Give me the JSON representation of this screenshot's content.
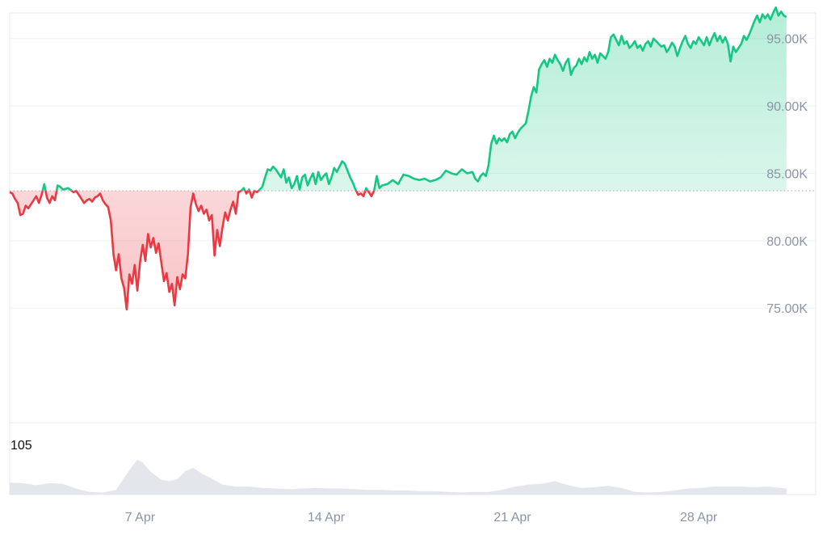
{
  "chart_data": {
    "type": "area",
    "baseline": 83700,
    "colors": {
      "up_line": "#16c784",
      "up_fill": "#16c784",
      "down_line": "#ea3943",
      "down_fill": "#ea3943",
      "volume_fill": "#e3e7ec",
      "grid": "#eef0f3",
      "axis_text": "#8a94a6",
      "baseline_dots": "#9aa3b0"
    },
    "y_axis": {
      "ylim": [
        66500,
        96900
      ],
      "ticks": [
        75000,
        80000,
        85000,
        90000,
        95000
      ],
      "tick_labels": [
        "75.00K",
        "80.00K",
        "85.00K",
        "90.00K",
        "95.00K"
      ]
    },
    "x_axis": {
      "xlim": [
        0,
        30.3
      ],
      "ticks": [
        4.9,
        11.9,
        18.9,
        25.9
      ],
      "tick_labels": [
        "7 Apr",
        "14 Apr",
        "21 Apr",
        "28 Apr"
      ]
    },
    "price_series": [
      [
        0.0,
        83600
      ],
      [
        0.1,
        83500
      ],
      [
        0.2,
        83100
      ],
      [
        0.3,
        82800
      ],
      [
        0.4,
        81900
      ],
      [
        0.5,
        82000
      ],
      [
        0.6,
        82600
      ],
      [
        0.7,
        82400
      ],
      [
        0.8,
        82700
      ],
      [
        0.9,
        83000
      ],
      [
        1.0,
        83300
      ],
      [
        1.1,
        82800
      ],
      [
        1.2,
        83400
      ],
      [
        1.3,
        84200
      ],
      [
        1.4,
        83200
      ],
      [
        1.5,
        82800
      ],
      [
        1.6,
        83300
      ],
      [
        1.7,
        83000
      ],
      [
        1.8,
        84100
      ],
      [
        1.9,
        84000
      ],
      [
        2.0,
        83800
      ],
      [
        2.2,
        83900
      ],
      [
        2.4,
        83600
      ],
      [
        2.5,
        83700
      ],
      [
        2.6,
        83400
      ],
      [
        2.7,
        83100
      ],
      [
        2.8,
        82800
      ],
      [
        2.9,
        83000
      ],
      [
        3.0,
        83100
      ],
      [
        3.1,
        82900
      ],
      [
        3.2,
        83200
      ],
      [
        3.3,
        83300
      ],
      [
        3.4,
        83500
      ],
      [
        3.5,
        83000
      ],
      [
        3.6,
        82700
      ],
      [
        3.7,
        82500
      ],
      [
        3.8,
        81500
      ],
      [
        3.9,
        79000
      ],
      [
        4.0,
        77800
      ],
      [
        4.1,
        79000
      ],
      [
        4.2,
        77200
      ],
      [
        4.3,
        76500
      ],
      [
        4.4,
        74900
      ],
      [
        4.5,
        77500
      ],
      [
        4.6,
        76800
      ],
      [
        4.7,
        78200
      ],
      [
        4.8,
        76300
      ],
      [
        4.9,
        78400
      ],
      [
        5.0,
        79700
      ],
      [
        5.1,
        78500
      ],
      [
        5.2,
        80500
      ],
      [
        5.3,
        79500
      ],
      [
        5.4,
        80200
      ],
      [
        5.5,
        79100
      ],
      [
        5.6,
        79800
      ],
      [
        5.7,
        78400
      ],
      [
        5.8,
        77000
      ],
      [
        5.9,
        77600
      ],
      [
        6.0,
        76200
      ],
      [
        6.1,
        76800
      ],
      [
        6.2,
        75200
      ],
      [
        6.3,
        77300
      ],
      [
        6.4,
        76400
      ],
      [
        6.5,
        77500
      ],
      [
        6.6,
        77200
      ],
      [
        6.7,
        79000
      ],
      [
        6.8,
        82500
      ],
      [
        6.9,
        83500
      ],
      [
        7.0,
        82700
      ],
      [
        7.1,
        82200
      ],
      [
        7.2,
        82600
      ],
      [
        7.3,
        82000
      ],
      [
        7.4,
        82300
      ],
      [
        7.5,
        81500
      ],
      [
        7.6,
        81900
      ],
      [
        7.7,
        78900
      ],
      [
        7.8,
        80800
      ],
      [
        7.9,
        79600
      ],
      [
        8.0,
        81000
      ],
      [
        8.1,
        82100
      ],
      [
        8.2,
        81500
      ],
      [
        8.3,
        82300
      ],
      [
        8.4,
        82900
      ],
      [
        8.5,
        82000
      ],
      [
        8.6,
        83600
      ],
      [
        8.7,
        83700
      ],
      [
        8.8,
        83900
      ],
      [
        8.9,
        83500
      ],
      [
        9.0,
        83800
      ],
      [
        9.1,
        83200
      ],
      [
        9.2,
        83700
      ],
      [
        9.3,
        83600
      ],
      [
        9.4,
        83800
      ],
      [
        9.5,
        84000
      ],
      [
        9.6,
        84700
      ],
      [
        9.7,
        85300
      ],
      [
        9.8,
        85200
      ],
      [
        9.9,
        85500
      ],
      [
        10.0,
        85300
      ],
      [
        10.1,
        85000
      ],
      [
        10.2,
        84700
      ],
      [
        10.3,
        85300
      ],
      [
        10.4,
        84300
      ],
      [
        10.5,
        84700
      ],
      [
        10.6,
        83900
      ],
      [
        10.7,
        84200
      ],
      [
        10.8,
        84800
      ],
      [
        10.9,
        83800
      ],
      [
        11.0,
        84700
      ],
      [
        11.1,
        84900
      ],
      [
        11.2,
        84100
      ],
      [
        11.3,
        84600
      ],
      [
        11.4,
        85000
      ],
      [
        11.5,
        84200
      ],
      [
        11.6,
        85100
      ],
      [
        11.7,
        84500
      ],
      [
        11.8,
        84800
      ],
      [
        11.9,
        85000
      ],
      [
        12.0,
        84200
      ],
      [
        12.1,
        84700
      ],
      [
        12.2,
        85400
      ],
      [
        12.3,
        85100
      ],
      [
        12.4,
        85500
      ],
      [
        12.5,
        85900
      ],
      [
        12.6,
        85700
      ],
      [
        12.7,
        85200
      ],
      [
        12.8,
        84700
      ],
      [
        12.9,
        84300
      ],
      [
        13.0,
        83800
      ],
      [
        13.1,
        83400
      ],
      [
        13.2,
        83500
      ],
      [
        13.3,
        83300
      ],
      [
        13.4,
        83900
      ],
      [
        13.5,
        83600
      ],
      [
        13.6,
        83300
      ],
      [
        13.7,
        83700
      ],
      [
        13.8,
        84800
      ],
      [
        13.9,
        83900
      ],
      [
        14.0,
        84100
      ],
      [
        14.2,
        84200
      ],
      [
        14.4,
        84500
      ],
      [
        14.6,
        84200
      ],
      [
        14.8,
        84900
      ],
      [
        15.0,
        84800
      ],
      [
        15.2,
        84600
      ],
      [
        15.4,
        84500
      ],
      [
        15.6,
        84600
      ],
      [
        15.8,
        84400
      ],
      [
        16.0,
        84500
      ],
      [
        16.2,
        84700
      ],
      [
        16.4,
        85200
      ],
      [
        16.6,
        85000
      ],
      [
        16.8,
        84900
      ],
      [
        17.0,
        85300
      ],
      [
        17.2,
        85000
      ],
      [
        17.4,
        85100
      ],
      [
        17.5,
        84600
      ],
      [
        17.6,
        84400
      ],
      [
        17.7,
        84800
      ],
      [
        17.8,
        85000
      ],
      [
        17.9,
        84800
      ],
      [
        18.0,
        85600
      ],
      [
        18.1,
        87200
      ],
      [
        18.2,
        87800
      ],
      [
        18.3,
        87200
      ],
      [
        18.4,
        87600
      ],
      [
        18.5,
        87400
      ],
      [
        18.6,
        87600
      ],
      [
        18.7,
        87300
      ],
      [
        18.8,
        87900
      ],
      [
        18.9,
        88100
      ],
      [
        19.0,
        87600
      ],
      [
        19.1,
        88000
      ],
      [
        19.2,
        88300
      ],
      [
        19.3,
        88500
      ],
      [
        19.4,
        88700
      ],
      [
        19.5,
        89600
      ],
      [
        19.6,
        90700
      ],
      [
        19.7,
        91400
      ],
      [
        19.8,
        91000
      ],
      [
        19.9,
        92700
      ],
      [
        20.0,
        93100
      ],
      [
        20.1,
        93400
      ],
      [
        20.2,
        92900
      ],
      [
        20.3,
        93500
      ],
      [
        20.4,
        93200
      ],
      [
        20.5,
        93800
      ],
      [
        20.6,
        93400
      ],
      [
        20.7,
        93100
      ],
      [
        20.8,
        92600
      ],
      [
        20.9,
        93200
      ],
      [
        21.0,
        93500
      ],
      [
        21.1,
        92300
      ],
      [
        21.2,
        92800
      ],
      [
        21.3,
        93000
      ],
      [
        21.4,
        93500
      ],
      [
        21.5,
        93100
      ],
      [
        21.6,
        93600
      ],
      [
        21.7,
        93300
      ],
      [
        21.8,
        94000
      ],
      [
        21.9,
        93500
      ],
      [
        22.0,
        93800
      ],
      [
        22.1,
        93200
      ],
      [
        22.2,
        93900
      ],
      [
        22.3,
        93700
      ],
      [
        22.4,
        93500
      ],
      [
        22.5,
        94000
      ],
      [
        22.6,
        95100
      ],
      [
        22.7,
        95300
      ],
      [
        22.8,
        94900
      ],
      [
        22.9,
        94500
      ],
      [
        23.0,
        95200
      ],
      [
        23.1,
        94600
      ],
      [
        23.2,
        94800
      ],
      [
        23.3,
        94300
      ],
      [
        23.4,
        94500
      ],
      [
        23.5,
        94800
      ],
      [
        23.6,
        94300
      ],
      [
        23.7,
        94500
      ],
      [
        23.8,
        94100
      ],
      [
        23.9,
        94600
      ],
      [
        24.0,
        94800
      ],
      [
        24.1,
        94400
      ],
      [
        24.2,
        95000
      ],
      [
        24.3,
        94800
      ],
      [
        24.4,
        94600
      ],
      [
        24.5,
        94400
      ],
      [
        24.6,
        94500
      ],
      [
        24.7,
        94000
      ],
      [
        24.8,
        94300
      ],
      [
        24.9,
        94700
      ],
      [
        25.0,
        94400
      ],
      [
        25.1,
        93700
      ],
      [
        25.2,
        94300
      ],
      [
        25.3,
        94800
      ],
      [
        25.4,
        95200
      ],
      [
        25.5,
        94600
      ],
      [
        25.6,
        94300
      ],
      [
        25.7,
        94800
      ],
      [
        25.8,
        94600
      ],
      [
        25.9,
        95100
      ],
      [
        26.0,
        94800
      ],
      [
        26.1,
        94500
      ],
      [
        26.2,
        95100
      ],
      [
        26.3,
        94500
      ],
      [
        26.4,
        95000
      ],
      [
        26.5,
        95400
      ],
      [
        26.6,
        94800
      ],
      [
        26.7,
        95200
      ],
      [
        26.8,
        94700
      ],
      [
        26.9,
        95100
      ],
      [
        27.0,
        94600
      ],
      [
        27.1,
        93300
      ],
      [
        27.2,
        94400
      ],
      [
        27.3,
        94000
      ],
      [
        27.4,
        94300
      ],
      [
        27.5,
        94600
      ],
      [
        27.6,
        95200
      ],
      [
        27.7,
        94900
      ],
      [
        27.8,
        95300
      ],
      [
        27.9,
        95800
      ],
      [
        28.0,
        96300
      ],
      [
        28.1,
        96700
      ],
      [
        28.2,
        96200
      ],
      [
        28.3,
        96800
      ],
      [
        28.4,
        96500
      ],
      [
        28.5,
        96800
      ],
      [
        28.6,
        96400
      ],
      [
        28.7,
        96900
      ],
      [
        28.8,
        97300
      ],
      [
        28.9,
        96700
      ],
      [
        29.0,
        97000
      ],
      [
        29.1,
        96700
      ],
      [
        29.2,
        96600
      ]
    ],
    "volume_series": [
      [
        0.0,
        18
      ],
      [
        0.5,
        17
      ],
      [
        1.0,
        14
      ],
      [
        1.5,
        17
      ],
      [
        2.0,
        16
      ],
      [
        2.5,
        9
      ],
      [
        3.0,
        4
      ],
      [
        3.5,
        3
      ],
      [
        4.0,
        7
      ],
      [
        4.3,
        25
      ],
      [
        4.6,
        42
      ],
      [
        4.8,
        52
      ],
      [
        5.0,
        48
      ],
      [
        5.3,
        34
      ],
      [
        5.7,
        22
      ],
      [
        6.0,
        20
      ],
      [
        6.3,
        23
      ],
      [
        6.6,
        35
      ],
      [
        6.9,
        40
      ],
      [
        7.2,
        32
      ],
      [
        7.6,
        24
      ],
      [
        8.0,
        15
      ],
      [
        8.5,
        12
      ],
      [
        9.0,
        12
      ],
      [
        9.5,
        10
      ],
      [
        10.0,
        9
      ],
      [
        10.5,
        8
      ],
      [
        11.0,
        9
      ],
      [
        11.5,
        10
      ],
      [
        12.0,
        9
      ],
      [
        12.5,
        9
      ],
      [
        13.0,
        8
      ],
      [
        13.5,
        7
      ],
      [
        14.0,
        7
      ],
      [
        14.5,
        6
      ],
      [
        15.0,
        6
      ],
      [
        15.5,
        5
      ],
      [
        16.0,
        5
      ],
      [
        16.5,
        4
      ],
      [
        17.0,
        3
      ],
      [
        17.5,
        4
      ],
      [
        18.0,
        4
      ],
      [
        18.5,
        7
      ],
      [
        19.0,
        12
      ],
      [
        19.5,
        15
      ],
      [
        20.0,
        16
      ],
      [
        20.5,
        20
      ],
      [
        21.0,
        14
      ],
      [
        21.5,
        10
      ],
      [
        22.0,
        11
      ],
      [
        22.5,
        13
      ],
      [
        23.0,
        10
      ],
      [
        23.5,
        4
      ],
      [
        24.0,
        3
      ],
      [
        24.5,
        4
      ],
      [
        25.0,
        6
      ],
      [
        25.5,
        9
      ],
      [
        26.0,
        10
      ],
      [
        26.5,
        12
      ],
      [
        27.0,
        12
      ],
      [
        27.5,
        12
      ],
      [
        28.0,
        11
      ],
      [
        28.5,
        12
      ],
      [
        29.0,
        10
      ],
      [
        29.2,
        9
      ]
    ],
    "volume_max": 105,
    "volume_scale_label": "105"
  }
}
